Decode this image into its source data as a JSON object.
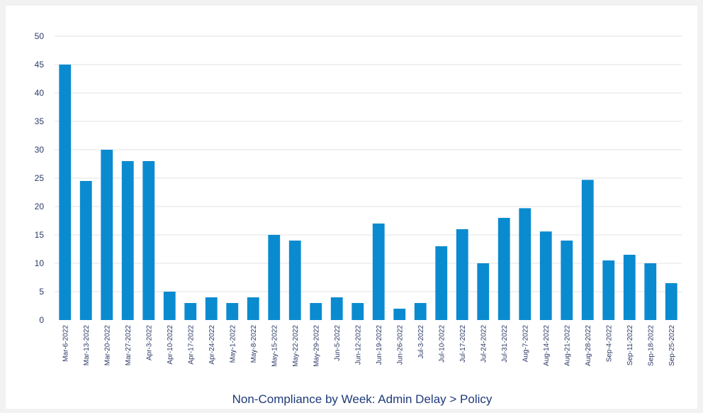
{
  "chart_data": {
    "type": "bar",
    "title": "Non-Compliance by Week: Admin Delay > Policy",
    "xlabel": "",
    "ylabel": "",
    "ylim": [
      0,
      50
    ],
    "yticks": [
      0,
      5,
      10,
      15,
      20,
      25,
      30,
      35,
      40,
      45,
      50
    ],
    "grid": true,
    "bar_color": "#0a8bd0",
    "categories": [
      "Mar-6-2022",
      "Mar-13-2022",
      "Mar-20-2022",
      "Mar-27-2022",
      "Apr-3-2022",
      "Apr-10-2022",
      "Apr-17-2022",
      "Apr-24-2022",
      "May-1-2022",
      "May-8-2022",
      "May-15-2022",
      "May-22-2022",
      "May-29-2022",
      "Jun-5-2022",
      "Jun-12-2022",
      "Jun-19-2022",
      "Jun-26-2022",
      "Jul-3-2022",
      "Jul-10-2022",
      "Jul-17-2022",
      "Jul-24-2022",
      "Jul-31-2022",
      "Aug-7-2022",
      "Aug-14-2022",
      "Aug-21-2022",
      "Aug-28-2022",
      "Sep-4-2022",
      "Sep-11-2022",
      "Sep-18-2022",
      "Sep-25-2022"
    ],
    "values": [
      45,
      24.5,
      30,
      28,
      28,
      5,
      3,
      4,
      3,
      4,
      15,
      14,
      3,
      4,
      3,
      17,
      2,
      3,
      13,
      16,
      10,
      18,
      19.7,
      15.6,
      14,
      24.7,
      10.5,
      11.5,
      10,
      6.5
    ]
  }
}
